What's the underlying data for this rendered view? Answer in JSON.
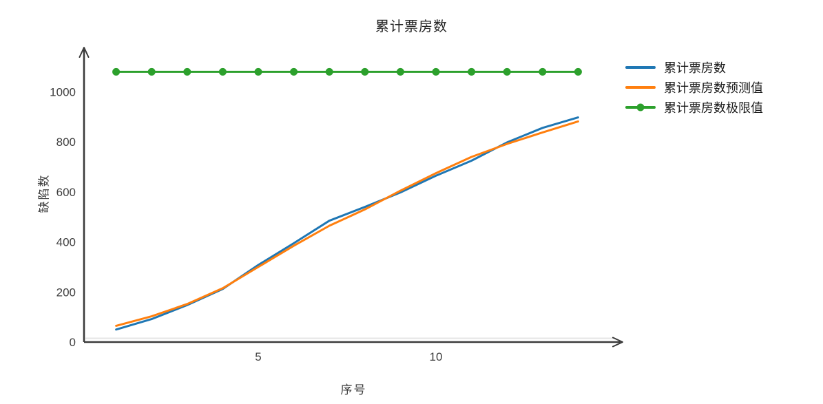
{
  "title": "累计票房数",
  "chart_data": {
    "type": "line",
    "title": "累计票房数",
    "xlabel": "序号",
    "ylabel": "缺陷数",
    "x": [
      1,
      2,
      3,
      4,
      5,
      6,
      7,
      8,
      9,
      10,
      11,
      12,
      13,
      14
    ],
    "series": [
      {
        "name": "累计票房数",
        "color": "#1f77b4",
        "marker": "none",
        "values": [
          50,
          92,
          148,
          212,
          308,
          395,
          485,
          540,
          598,
          665,
          725,
          798,
          856,
          898
        ]
      },
      {
        "name": "累计票房数预测值",
        "color": "#ff7f0e",
        "marker": "none",
        "values": [
          65,
          103,
          152,
          215,
          300,
          385,
          465,
          530,
          605,
          675,
          740,
          792,
          838,
          882
        ]
      },
      {
        "name": "累计票房数极限值",
        "color": "#2ca02c",
        "marker": "circle",
        "values": [
          1080,
          1080,
          1080,
          1080,
          1080,
          1080,
          1080,
          1080,
          1080,
          1080,
          1080,
          1080,
          1080,
          1080
        ]
      }
    ],
    "x_ticks": [
      5,
      10
    ],
    "y_ticks": [
      0,
      200,
      400,
      600,
      800,
      1000
    ],
    "xlim": [
      0,
      15.2
    ],
    "ylim": [
      0,
      1175
    ],
    "grid": false,
    "legend_position": "right",
    "axis_color": "#3a3a3a",
    "tick_color": "#3f3f3f",
    "zero_line_color": "#e4e4e4"
  }
}
